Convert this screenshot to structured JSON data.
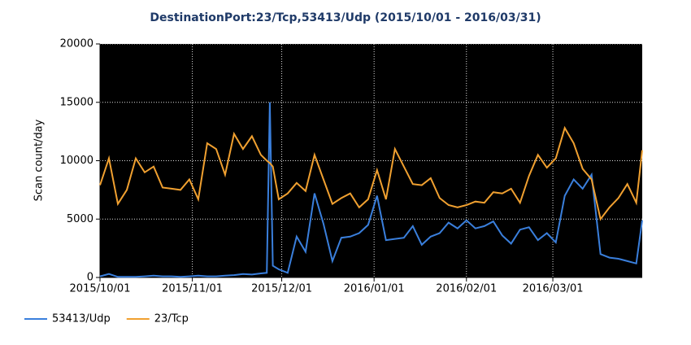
{
  "chart_data": {
    "type": "line",
    "title": "DestinationPort:23/Tcp,53413/Udp  (2015/10/01  -  2016/03/31)",
    "y_label": "Scan count/day",
    "x": [
      "2015/10/01",
      "2015/10/04",
      "2015/10/07",
      "2015/10/10",
      "2015/10/13",
      "2015/10/16",
      "2015/10/19",
      "2015/10/22",
      "2015/10/25",
      "2015/10/28",
      "2015/10/31",
      "2015/11/03",
      "2015/11/06",
      "2015/11/09",
      "2015/11/12",
      "2015/11/15",
      "2015/11/18",
      "2015/11/21",
      "2015/11/24",
      "2015/11/26",
      "2015/11/27",
      "2015/11/28",
      "2015/11/30",
      "2015/12/03",
      "2015/12/06",
      "2015/12/09",
      "2015/12/12",
      "2015/12/15",
      "2015/12/18",
      "2015/12/21",
      "2015/12/24",
      "2015/12/27",
      "2015/12/30",
      "2016/01/02",
      "2016/01/05",
      "2016/01/08",
      "2016/01/11",
      "2016/01/14",
      "2016/01/17",
      "2016/01/20",
      "2016/01/23",
      "2016/01/26",
      "2016/01/29",
      "2016/02/01",
      "2016/02/04",
      "2016/02/07",
      "2016/02/10",
      "2016/02/13",
      "2016/02/16",
      "2016/02/19",
      "2016/02/22",
      "2016/02/25",
      "2016/02/28",
      "2016/03/02",
      "2016/03/05",
      "2016/03/08",
      "2016/03/11",
      "2016/03/14",
      "2016/03/17",
      "2016/03/20",
      "2016/03/23",
      "2016/03/26",
      "2016/03/29",
      "2016/03/31"
    ],
    "series": [
      {
        "name": "53413/Udp",
        "color": "#3a7fdc",
        "values": [
          100,
          300,
          50,
          50,
          50,
          100,
          150,
          100,
          100,
          50,
          100,
          150,
          100,
          100,
          150,
          200,
          300,
          250,
          350,
          400,
          15000,
          1000,
          700,
          400,
          3500,
          2200,
          7200,
          4600,
          1400,
          3400,
          3500,
          3800,
          4500,
          7000,
          3200,
          3300,
          3400,
          4400,
          2800,
          3500,
          3800,
          4700,
          4200,
          4900,
          4200,
          4400,
          4800,
          3600,
          2900,
          4100,
          4300,
          3200,
          3800,
          3000,
          7000,
          8400,
          7600,
          8800,
          2000,
          1700,
          1600,
          1400,
          1200,
          4900
        ]
      },
      {
        "name": "23/Tcp",
        "color": "#f0a030",
        "values": [
          7900,
          10200,
          6300,
          7500,
          10200,
          9000,
          9500,
          7700,
          7600,
          7500,
          8400,
          6700,
          11500,
          11000,
          8800,
          12300,
          11000,
          12100,
          10500,
          10000,
          9800,
          9500,
          6700,
          7200,
          8100,
          7400,
          10500,
          8400,
          6300,
          6800,
          7200,
          6000,
          6700,
          9200,
          6700,
          11000,
          9500,
          8000,
          7900,
          8500,
          6800,
          6200,
          6000,
          6200,
          6500,
          6400,
          7300,
          7200,
          7600,
          6400,
          8700,
          10500,
          9400,
          10200,
          12800,
          11500,
          9300,
          8400,
          5000,
          6000,
          6800,
          8000,
          6400,
          10900
        ]
      }
    ],
    "xlim": [
      "2015/10/01",
      "2016/03/31"
    ],
    "xticks": [
      "2015/10/01",
      "2015/11/01",
      "2015/12/01",
      "2016/01/01",
      "2016/02/01",
      "2016/03/01"
    ],
    "ylim": [
      0,
      20000
    ],
    "yticks": [
      0,
      5000,
      10000,
      15000,
      20000
    ],
    "grid": true,
    "legend": "bottom-left"
  }
}
